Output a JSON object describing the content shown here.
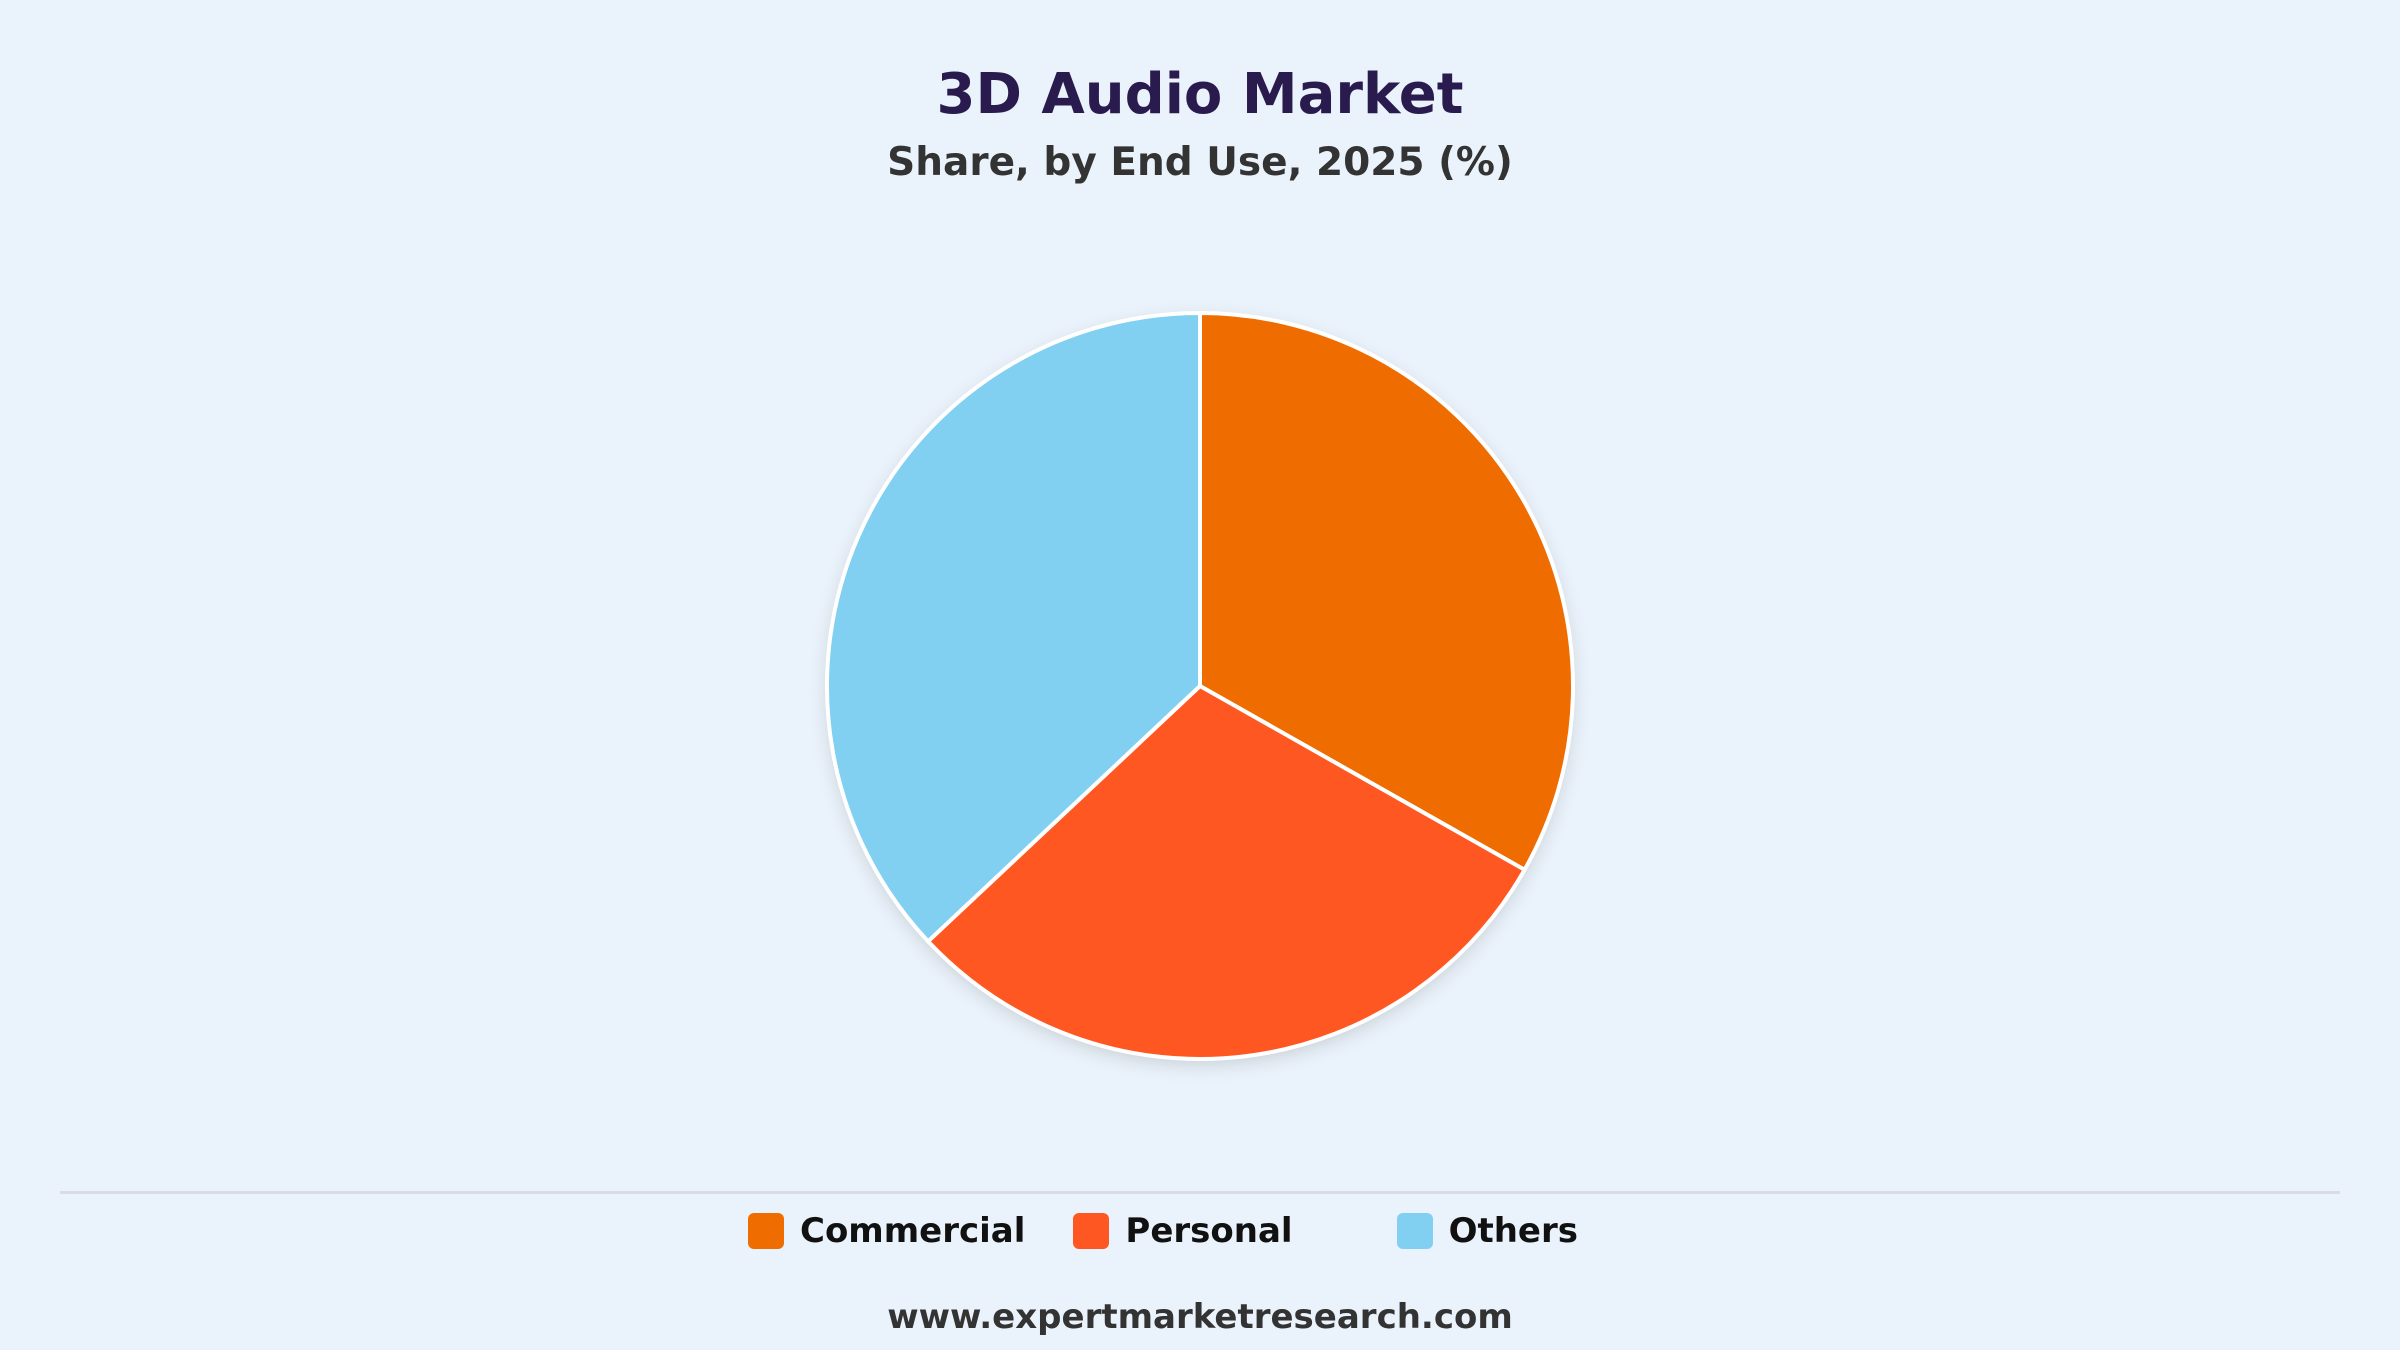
{
  "header": {
    "title": "3D Audio Market",
    "subtitle": "Share, by End Use, 2025 (%)"
  },
  "chart_data": {
    "type": "pie",
    "title": "3D Audio Market",
    "subtitle": "Share, by End Use, 2025 (%)",
    "categories": [
      "Commercial",
      "Personal",
      "Others"
    ],
    "values": [
      33.2,
      29.8,
      37.0
    ],
    "colors": [
      "#ef6c00",
      "#ff5722",
      "#81cff1"
    ],
    "start_angle_deg": 0,
    "direction": "clockwise",
    "legend_position": "bottom"
  },
  "legend": {
    "items": [
      {
        "label": "Commercial",
        "color": "#ef6c00"
      },
      {
        "label": "Personal",
        "color": "#ff5722"
      },
      {
        "label": "Others",
        "color": "#81cff1"
      }
    ]
  },
  "footer": {
    "source": "www.expertmarketresearch.com"
  }
}
